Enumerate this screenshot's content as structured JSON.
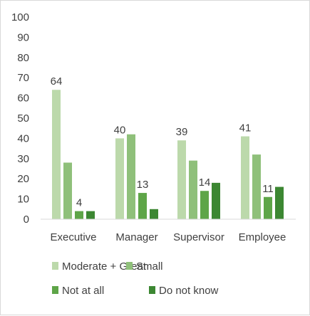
{
  "chart_data": {
    "type": "bar",
    "title": "",
    "xlabel": "",
    "ylabel": "",
    "ylim": [
      0,
      100
    ],
    "yticks": [
      0,
      10,
      20,
      30,
      40,
      50,
      60,
      70,
      80,
      90,
      100
    ],
    "categories": [
      "Executive",
      "Manager",
      "Supervisor",
      "Employee"
    ],
    "series": [
      {
        "name": "Moderate + Great",
        "color": "#bcd9ab",
        "values": [
          64,
          40,
          39,
          41
        ]
      },
      {
        "name": "Small",
        "color": "#8fc07a",
        "values": [
          28,
          42,
          29,
          32
        ]
      },
      {
        "name": "Not at all",
        "color": "#5ea548",
        "values": [
          4,
          13,
          14,
          11
        ]
      },
      {
        "name": "Do not know",
        "color": "#3c8732",
        "values": [
          4,
          5,
          18,
          16
        ]
      }
    ],
    "data_labels": [
      {
        "series": 0,
        "category": 0,
        "text": "64"
      },
      {
        "series": 0,
        "category": 1,
        "text": "40"
      },
      {
        "series": 0,
        "category": 2,
        "text": "39"
      },
      {
        "series": 0,
        "category": 3,
        "text": "41"
      },
      {
        "series": 2,
        "category": 0,
        "text": "4"
      },
      {
        "series": 2,
        "category": 1,
        "text": "13"
      },
      {
        "series": 2,
        "category": 2,
        "text": "14"
      },
      {
        "series": 2,
        "category": 3,
        "text": "11"
      }
    ],
    "grid": false,
    "legend_position": "bottom"
  }
}
